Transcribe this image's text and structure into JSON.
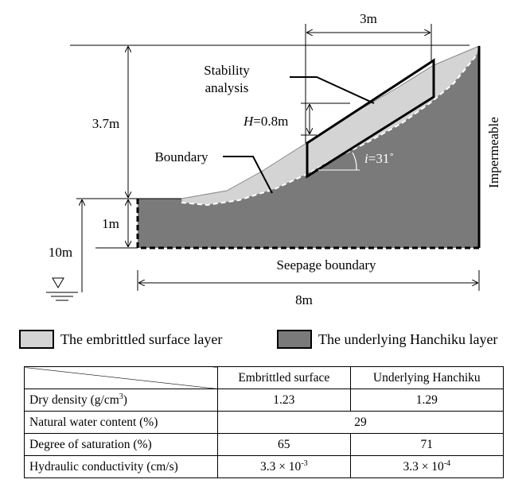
{
  "diagram": {
    "dim_top_width": "3m",
    "stability_line1": "Stability",
    "stability_line2": "analysis",
    "h_italic": "H",
    "h_value": "=0.8m",
    "slope_height": "3.7m",
    "boundary": "Boundary",
    "angle_italic": "i",
    "angle_value": "=31˚",
    "impermeable": "Impermeable",
    "toe_height": "1m",
    "water_depth": "10m",
    "seepage": "Seepage boundary",
    "base_width": "8m"
  },
  "legend": {
    "surface_label": "The embrittled surface layer",
    "underlying_label": "The underlying Hanchiku layer"
  },
  "table": {
    "col1": "Embrittled surface",
    "col2": "Underlying Hanchiku",
    "rows": [
      {
        "name": "Dry density (g/cm",
        "name_sup": "3",
        "name_tail": ")",
        "v1": "1.23",
        "v2": "1.29"
      },
      {
        "name": "Natural water content (%)",
        "v": "29"
      },
      {
        "name": "Degree of saturation (%)",
        "v1": "65",
        "v2": "71"
      },
      {
        "name": "Hydraulic conductivity (cm/s)",
        "v1_base": "3.3 × 10",
        "v1_exp": "-3",
        "v2_base": "3.3 × 10",
        "v2_exp": "-4"
      }
    ]
  },
  "colors": {
    "surface": "#d4d4d4",
    "underlying": "#7a7a7a"
  }
}
